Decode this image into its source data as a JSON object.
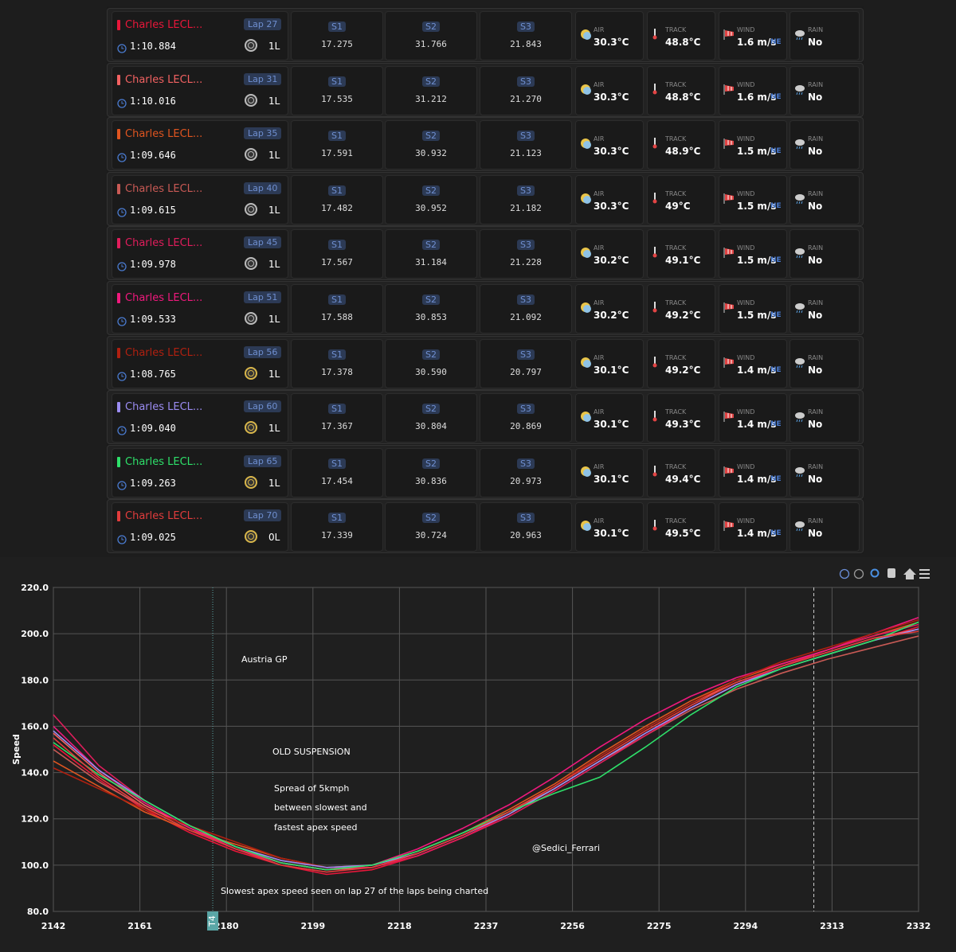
{
  "labels": {
    "s1": "S1",
    "s2": "S2",
    "s3": "S3",
    "air": "AIR",
    "track": "TRACK",
    "wind": "WIND",
    "rain": "RAIN"
  },
  "laps": [
    {
      "driver": "Charles LECL...",
      "color": "#e8173a",
      "lap": "Lap 27",
      "time": "1:10.884",
      "tyre_age": "1L",
      "s1": "17.275",
      "s2": "31.766",
      "s3": "21.843",
      "air": "30.3°C",
      "track": "48.8°C",
      "wind": "1.6 m/s",
      "wind_dir": "NE",
      "rain": "No"
    },
    {
      "driver": "Charles LECL...",
      "color": "#f36262",
      "lap": "Lap 31",
      "time": "1:10.016",
      "tyre_age": "1L",
      "s1": "17.535",
      "s2": "31.212",
      "s3": "21.270",
      "air": "30.3°C",
      "track": "48.8°C",
      "wind": "1.6 m/s",
      "wind_dir": "NE",
      "rain": "No"
    },
    {
      "driver": "Charles LECL...",
      "color": "#e05520",
      "lap": "Lap 35",
      "time": "1:09.646",
      "tyre_age": "1L",
      "s1": "17.591",
      "s2": "30.932",
      "s3": "21.123",
      "air": "30.3°C",
      "track": "48.9°C",
      "wind": "1.5 m/s",
      "wind_dir": "NE",
      "rain": "No"
    },
    {
      "driver": "Charles LECL...",
      "color": "#c95a55",
      "lap": "Lap 40",
      "time": "1:09.615",
      "tyre_age": "1L",
      "s1": "17.482",
      "s2": "30.952",
      "s3": "21.182",
      "air": "30.3°C",
      "track": "49°C",
      "wind": "1.5 m/s",
      "wind_dir": "NE",
      "rain": "No"
    },
    {
      "driver": "Charles LECL...",
      "color": "#e11d5c",
      "lap": "Lap 45",
      "time": "1:09.978",
      "tyre_age": "1L",
      "s1": "17.567",
      "s2": "31.184",
      "s3": "21.228",
      "air": "30.2°C",
      "track": "49.1°C",
      "wind": "1.5 m/s",
      "wind_dir": "NE",
      "rain": "No"
    },
    {
      "driver": "Charles LECL...",
      "color": "#f0197d",
      "lap": "Lap 51",
      "time": "1:09.533",
      "tyre_age": "1L",
      "s1": "17.588",
      "s2": "30.853",
      "s3": "21.092",
      "air": "30.2°C",
      "track": "49.2°C",
      "wind": "1.5 m/s",
      "wind_dir": "NE",
      "rain": "No"
    },
    {
      "driver": "Charles LECL...",
      "color": "#b02010",
      "lap": "Lap 56",
      "time": "1:08.765",
      "tyre_age": "1L",
      "s1": "17.378",
      "s2": "30.590",
      "s3": "20.797",
      "air": "30.1°C",
      "track": "49.2°C",
      "wind": "1.4 m/s",
      "wind_dir": "NE",
      "rain": "No"
    },
    {
      "driver": "Charles LECL...",
      "color": "#9b8cf2",
      "lap": "Lap 60",
      "time": "1:09.040",
      "tyre_age": "1L",
      "s1": "17.367",
      "s2": "30.804",
      "s3": "20.869",
      "air": "30.1°C",
      "track": "49.3°C",
      "wind": "1.4 m/s",
      "wind_dir": "NE",
      "rain": "No"
    },
    {
      "driver": "Charles LECL...",
      "color": "#2ee06a",
      "lap": "Lap 65",
      "time": "1:09.263",
      "tyre_age": "1L",
      "s1": "17.454",
      "s2": "30.836",
      "s3": "20.973",
      "air": "30.1°C",
      "track": "49.4°C",
      "wind": "1.4 m/s",
      "wind_dir": "NE",
      "rain": "No"
    },
    {
      "driver": "Charles LECL...",
      "color": "#e23c3c",
      "lap": "Lap 70",
      "time": "1:09.025",
      "tyre_age": "0L",
      "s1": "17.339",
      "s2": "30.724",
      "s3": "20.963",
      "air": "30.1°C",
      "track": "49.5°C",
      "wind": "1.4 m/s",
      "wind_dir": "NE",
      "rain": "No"
    }
  ],
  "chart_data": {
    "type": "line",
    "ylabel": "Speed",
    "x": [
      2142,
      2152,
      2162,
      2172,
      2182,
      2192,
      2202,
      2212,
      2222,
      2232,
      2242,
      2252,
      2262,
      2272,
      2282,
      2292,
      2302,
      2312,
      2322,
      2332
    ],
    "xlim": [
      2142,
      2332
    ],
    "xticks": [
      2142,
      2161,
      2180,
      2199,
      2218,
      2237,
      2256,
      2275,
      2294,
      2313,
      2332
    ],
    "ylim": [
      80,
      220
    ],
    "yticks": [
      {
        "value": 80,
        "label": "80.0"
      },
      {
        "value": 100,
        "label": "100.0"
      },
      {
        "value": 120,
        "label": "120.0"
      },
      {
        "value": 140,
        "label": "140.0"
      },
      {
        "value": 160,
        "label": "160.0"
      },
      {
        "value": 180,
        "label": "180.0"
      },
      {
        "value": 200,
        "label": "200.0"
      },
      {
        "value": 220,
        "label": "220.0"
      }
    ],
    "grid": true,
    "markers": [
      {
        "x": 2177,
        "label": "T4"
      }
    ],
    "dashed_lines": [
      2309
    ],
    "annotations": [
      "Austria GP",
      "OLD SUSPENSION",
      "Spread of 5kmph",
      "between slowest and",
      "fastest apex speed",
      "@Sedici_Ferrari",
      "Slowest apex speed seen on lap 27 of the laps being charted"
    ],
    "series": [
      {
        "color": "#e8173a",
        "values": [
          152,
          137,
          124,
          114,
          106,
          100,
          96,
          98,
          104,
          112,
          122,
          133,
          145,
          157,
          168,
          178,
          185,
          191,
          197,
          203
        ]
      },
      {
        "color": "#f36262",
        "values": [
          157,
          140,
          126,
          116,
          108,
          101,
          98,
          99,
          105,
          113,
          123,
          134,
          147,
          159,
          170,
          179,
          186,
          192,
          198,
          202
        ]
      },
      {
        "color": "#e05520",
        "values": [
          145,
          134,
          123,
          115,
          109,
          103,
          99,
          100,
          106,
          114,
          124,
          135,
          148,
          160,
          171,
          180,
          187,
          193,
          199,
          205
        ]
      },
      {
        "color": "#c95a55",
        "values": [
          150,
          136,
          125,
          115,
          107,
          101,
          98,
          100,
          106,
          114,
          123,
          133,
          145,
          156,
          167,
          176,
          183,
          189,
          194,
          199
        ]
      },
      {
        "color": "#e11d5c",
        "values": [
          165,
          143,
          128,
          117,
          108,
          102,
          99,
          99,
          104,
          112,
          121,
          132,
          144,
          156,
          168,
          178,
          186,
          193,
          199,
          204
        ]
      },
      {
        "color": "#f0197d",
        "values": [
          160,
          141,
          127,
          116,
          107,
          101,
          98,
          100,
          107,
          116,
          126,
          138,
          151,
          163,
          173,
          181,
          187,
          193,
          200,
          207
        ]
      },
      {
        "color": "#b02010",
        "values": [
          142,
          133,
          124,
          117,
          110,
          103,
          99,
          100,
          105,
          113,
          123,
          134,
          147,
          159,
          170,
          180,
          188,
          194,
          200,
          206
        ]
      },
      {
        "color": "#9b8cf2",
        "values": [
          158,
          141,
          128,
          117,
          108,
          102,
          99,
          100,
          105,
          113,
          122,
          133,
          145,
          157,
          168,
          178,
          185,
          191,
          197,
          202
        ]
      },
      {
        "color": "#2ee06a",
        "values": [
          153,
          139,
          128,
          117,
          108,
          101,
          98,
          100,
          106,
          114,
          123,
          131,
          138,
          151,
          165,
          177,
          185,
          191,
          197,
          205
        ]
      },
      {
        "color": "#e23c3c",
        "values": [
          155,
          138,
          125,
          115,
          107,
          100,
          97,
          99,
          105,
          113,
          123,
          134,
          146,
          158,
          169,
          179,
          186,
          192,
          198,
          201
        ]
      }
    ]
  }
}
